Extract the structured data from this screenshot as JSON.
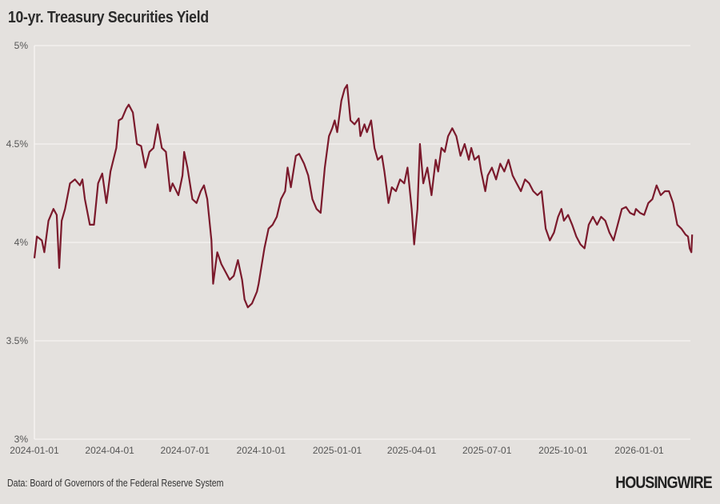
{
  "chart_data": {
    "type": "line",
    "title": "10-yr. Treasury Securities Yield",
    "xlabel": "",
    "ylabel": "",
    "ylim": [
      3,
      5
    ],
    "xlim": [
      "2024-01-01",
      "2026-03-06"
    ],
    "grid": "horizontal",
    "line_color": "#7b1a2c",
    "background": "#e4e1de",
    "y_ticks": [
      {
        "value": 3,
        "label": "3%"
      },
      {
        "value": 3.5,
        "label": "3.5%"
      },
      {
        "value": 4,
        "label": "4%"
      },
      {
        "value": 4.5,
        "label": "4.5%"
      },
      {
        "value": 5,
        "label": "5%"
      }
    ],
    "x_ticks": [
      "2024-01-01",
      "2024-04-01",
      "2024-07-01",
      "2024-10-01",
      "2025-01-01",
      "2025-04-01",
      "2025-07-01",
      "2025-10-01",
      "2026-01-01"
    ],
    "series": [
      {
        "points": [
          [
            "2024-01-01",
            3.92
          ],
          [
            "2024-01-04",
            4.03
          ],
          [
            "2024-01-10",
            4.01
          ],
          [
            "2024-01-13",
            3.95
          ],
          [
            "2024-01-18",
            4.11
          ],
          [
            "2024-01-24",
            4.17
          ],
          [
            "2024-01-28",
            4.14
          ],
          [
            "2024-01-31",
            3.87
          ],
          [
            "2024-02-03",
            4.11
          ],
          [
            "2024-02-07",
            4.17
          ],
          [
            "2024-02-13",
            4.3
          ],
          [
            "2024-02-19",
            4.32
          ],
          [
            "2024-02-25",
            4.29
          ],
          [
            "2024-02-28",
            4.32
          ],
          [
            "2024-03-02",
            4.22
          ],
          [
            "2024-03-08",
            4.09
          ],
          [
            "2024-03-13",
            4.09
          ],
          [
            "2024-03-18",
            4.3
          ],
          [
            "2024-03-23",
            4.35
          ],
          [
            "2024-03-28",
            4.2
          ],
          [
            "2024-03-30",
            4.26
          ],
          [
            "2024-04-02",
            4.36
          ],
          [
            "2024-04-09",
            4.48
          ],
          [
            "2024-04-12",
            4.62
          ],
          [
            "2024-04-16",
            4.63
          ],
          [
            "2024-04-21",
            4.68
          ],
          [
            "2024-04-24",
            4.7
          ],
          [
            "2024-04-29",
            4.66
          ],
          [
            "2024-05-04",
            4.5
          ],
          [
            "2024-05-09",
            4.49
          ],
          [
            "2024-05-14",
            4.38
          ],
          [
            "2024-05-19",
            4.46
          ],
          [
            "2024-05-24",
            4.48
          ],
          [
            "2024-05-29",
            4.6
          ],
          [
            "2024-06-03",
            4.48
          ],
          [
            "2024-06-08",
            4.46
          ],
          [
            "2024-06-13",
            4.26
          ],
          [
            "2024-06-16",
            4.3
          ],
          [
            "2024-06-23",
            4.24
          ],
          [
            "2024-06-28",
            4.34
          ],
          [
            "2024-06-30",
            4.46
          ],
          [
            "2024-07-04",
            4.38
          ],
          [
            "2024-07-10",
            4.22
          ],
          [
            "2024-07-15",
            4.2
          ],
          [
            "2024-07-20",
            4.26
          ],
          [
            "2024-07-24",
            4.29
          ],
          [
            "2024-07-28",
            4.22
          ],
          [
            "2024-08-02",
            4.01
          ],
          [
            "2024-08-04",
            3.79
          ],
          [
            "2024-08-09",
            3.95
          ],
          [
            "2024-08-14",
            3.89
          ],
          [
            "2024-08-19",
            3.85
          ],
          [
            "2024-08-24",
            3.81
          ],
          [
            "2024-08-29",
            3.83
          ],
          [
            "2024-09-03",
            3.91
          ],
          [
            "2024-09-08",
            3.81
          ],
          [
            "2024-09-11",
            3.71
          ],
          [
            "2024-09-15",
            3.67
          ],
          [
            "2024-09-20",
            3.69
          ],
          [
            "2024-09-26",
            3.75
          ],
          [
            "2024-09-28",
            3.79
          ],
          [
            "2024-10-05",
            3.97
          ],
          [
            "2024-10-10",
            4.07
          ],
          [
            "2024-10-15",
            4.09
          ],
          [
            "2024-10-20",
            4.13
          ],
          [
            "2024-10-25",
            4.22
          ],
          [
            "2024-10-30",
            4.26
          ],
          [
            "2024-11-02",
            4.38
          ],
          [
            "2024-11-06",
            4.28
          ],
          [
            "2024-11-12",
            4.44
          ],
          [
            "2024-11-16",
            4.45
          ],
          [
            "2024-11-22",
            4.4
          ],
          [
            "2024-11-27",
            4.34
          ],
          [
            "2024-12-02",
            4.22
          ],
          [
            "2024-12-07",
            4.17
          ],
          [
            "2024-12-12",
            4.15
          ],
          [
            "2024-12-17",
            4.38
          ],
          [
            "2024-12-22",
            4.54
          ],
          [
            "2024-12-26",
            4.58
          ],
          [
            "2024-12-29",
            4.62
          ],
          [
            "2025-01-01",
            4.56
          ],
          [
            "2025-01-06",
            4.72
          ],
          [
            "2025-01-10",
            4.78
          ],
          [
            "2025-01-13",
            4.8
          ],
          [
            "2025-01-17",
            4.62
          ],
          [
            "2025-01-22",
            4.6
          ],
          [
            "2025-01-27",
            4.63
          ],
          [
            "2025-01-29",
            4.54
          ],
          [
            "2025-02-03",
            4.6
          ],
          [
            "2025-02-06",
            4.56
          ],
          [
            "2025-02-11",
            4.62
          ],
          [
            "2025-02-15",
            4.48
          ],
          [
            "2025-02-19",
            4.42
          ],
          [
            "2025-02-24",
            4.44
          ],
          [
            "2025-02-27",
            4.36
          ],
          [
            "2025-03-04",
            4.2
          ],
          [
            "2025-03-08",
            4.28
          ],
          [
            "2025-03-13",
            4.26
          ],
          [
            "2025-03-18",
            4.32
          ],
          [
            "2025-03-23",
            4.3
          ],
          [
            "2025-03-27",
            4.38
          ],
          [
            "2025-04-01",
            4.17
          ],
          [
            "2025-04-04",
            3.99
          ],
          [
            "2025-04-08",
            4.17
          ],
          [
            "2025-04-11",
            4.5
          ],
          [
            "2025-04-15",
            4.3
          ],
          [
            "2025-04-20",
            4.38
          ],
          [
            "2025-04-25",
            4.24
          ],
          [
            "2025-04-30",
            4.42
          ],
          [
            "2025-05-03",
            4.36
          ],
          [
            "2025-05-07",
            4.48
          ],
          [
            "2025-05-11",
            4.46
          ],
          [
            "2025-05-15",
            4.54
          ],
          [
            "2025-05-20",
            4.58
          ],
          [
            "2025-05-25",
            4.54
          ],
          [
            "2025-05-30",
            4.44
          ],
          [
            "2025-06-04",
            4.5
          ],
          [
            "2025-06-09",
            4.42
          ],
          [
            "2025-06-12",
            4.48
          ],
          [
            "2025-06-16",
            4.42
          ],
          [
            "2025-06-21",
            4.44
          ],
          [
            "2025-06-24",
            4.36
          ],
          [
            "2025-06-29",
            4.26
          ],
          [
            "2025-07-02",
            4.34
          ],
          [
            "2025-07-07",
            4.38
          ],
          [
            "2025-07-12",
            4.32
          ],
          [
            "2025-07-17",
            4.4
          ],
          [
            "2025-07-22",
            4.36
          ],
          [
            "2025-07-27",
            4.42
          ],
          [
            "2025-08-01",
            4.34
          ],
          [
            "2025-08-06",
            4.3
          ],
          [
            "2025-08-11",
            4.26
          ],
          [
            "2025-08-16",
            4.32
          ],
          [
            "2025-08-21",
            4.3
          ],
          [
            "2025-08-26",
            4.26
          ],
          [
            "2025-08-31",
            4.24
          ],
          [
            "2025-09-05",
            4.26
          ],
          [
            "2025-09-10",
            4.07
          ],
          [
            "2025-09-15",
            4.01
          ],
          [
            "2025-09-20",
            4.05
          ],
          [
            "2025-09-25",
            4.13
          ],
          [
            "2025-09-29",
            4.17
          ],
          [
            "2025-10-02",
            4.11
          ],
          [
            "2025-10-07",
            4.14
          ],
          [
            "2025-10-12",
            4.09
          ],
          [
            "2025-10-17",
            4.03
          ],
          [
            "2025-10-22",
            3.99
          ],
          [
            "2025-10-27",
            3.97
          ],
          [
            "2025-11-01",
            4.09
          ],
          [
            "2025-11-06",
            4.13
          ],
          [
            "2025-11-11",
            4.09
          ],
          [
            "2025-11-16",
            4.13
          ],
          [
            "2025-11-21",
            4.11
          ],
          [
            "2025-11-26",
            4.05
          ],
          [
            "2025-12-01",
            4.01
          ],
          [
            "2025-12-06",
            4.09
          ],
          [
            "2025-12-11",
            4.17
          ],
          [
            "2025-12-16",
            4.18
          ],
          [
            "2025-12-21",
            4.15
          ],
          [
            "2025-12-26",
            4.14
          ],
          [
            "2025-12-28",
            4.17
          ],
          [
            "2026-01-02",
            4.15
          ],
          [
            "2026-01-07",
            4.14
          ],
          [
            "2026-01-12",
            4.2
          ],
          [
            "2026-01-17",
            4.22
          ],
          [
            "2026-01-22",
            4.29
          ],
          [
            "2026-01-27",
            4.24
          ],
          [
            "2026-02-01",
            4.26
          ],
          [
            "2026-02-06",
            4.26
          ],
          [
            "2026-02-11",
            4.2
          ],
          [
            "2026-02-16",
            4.09
          ],
          [
            "2026-02-21",
            4.07
          ],
          [
            "2026-02-26",
            4.04
          ],
          [
            "2026-03-01",
            4.03
          ],
          [
            "2026-03-03",
            3.97
          ],
          [
            "2026-03-05",
            3.95
          ],
          [
            "2026-03-06",
            4.04
          ]
        ]
      }
    ],
    "source": "Data: Board of Governors of the Federal Reserve System"
  },
  "branding": {
    "logo_text": "HOUSINGWIRE"
  }
}
